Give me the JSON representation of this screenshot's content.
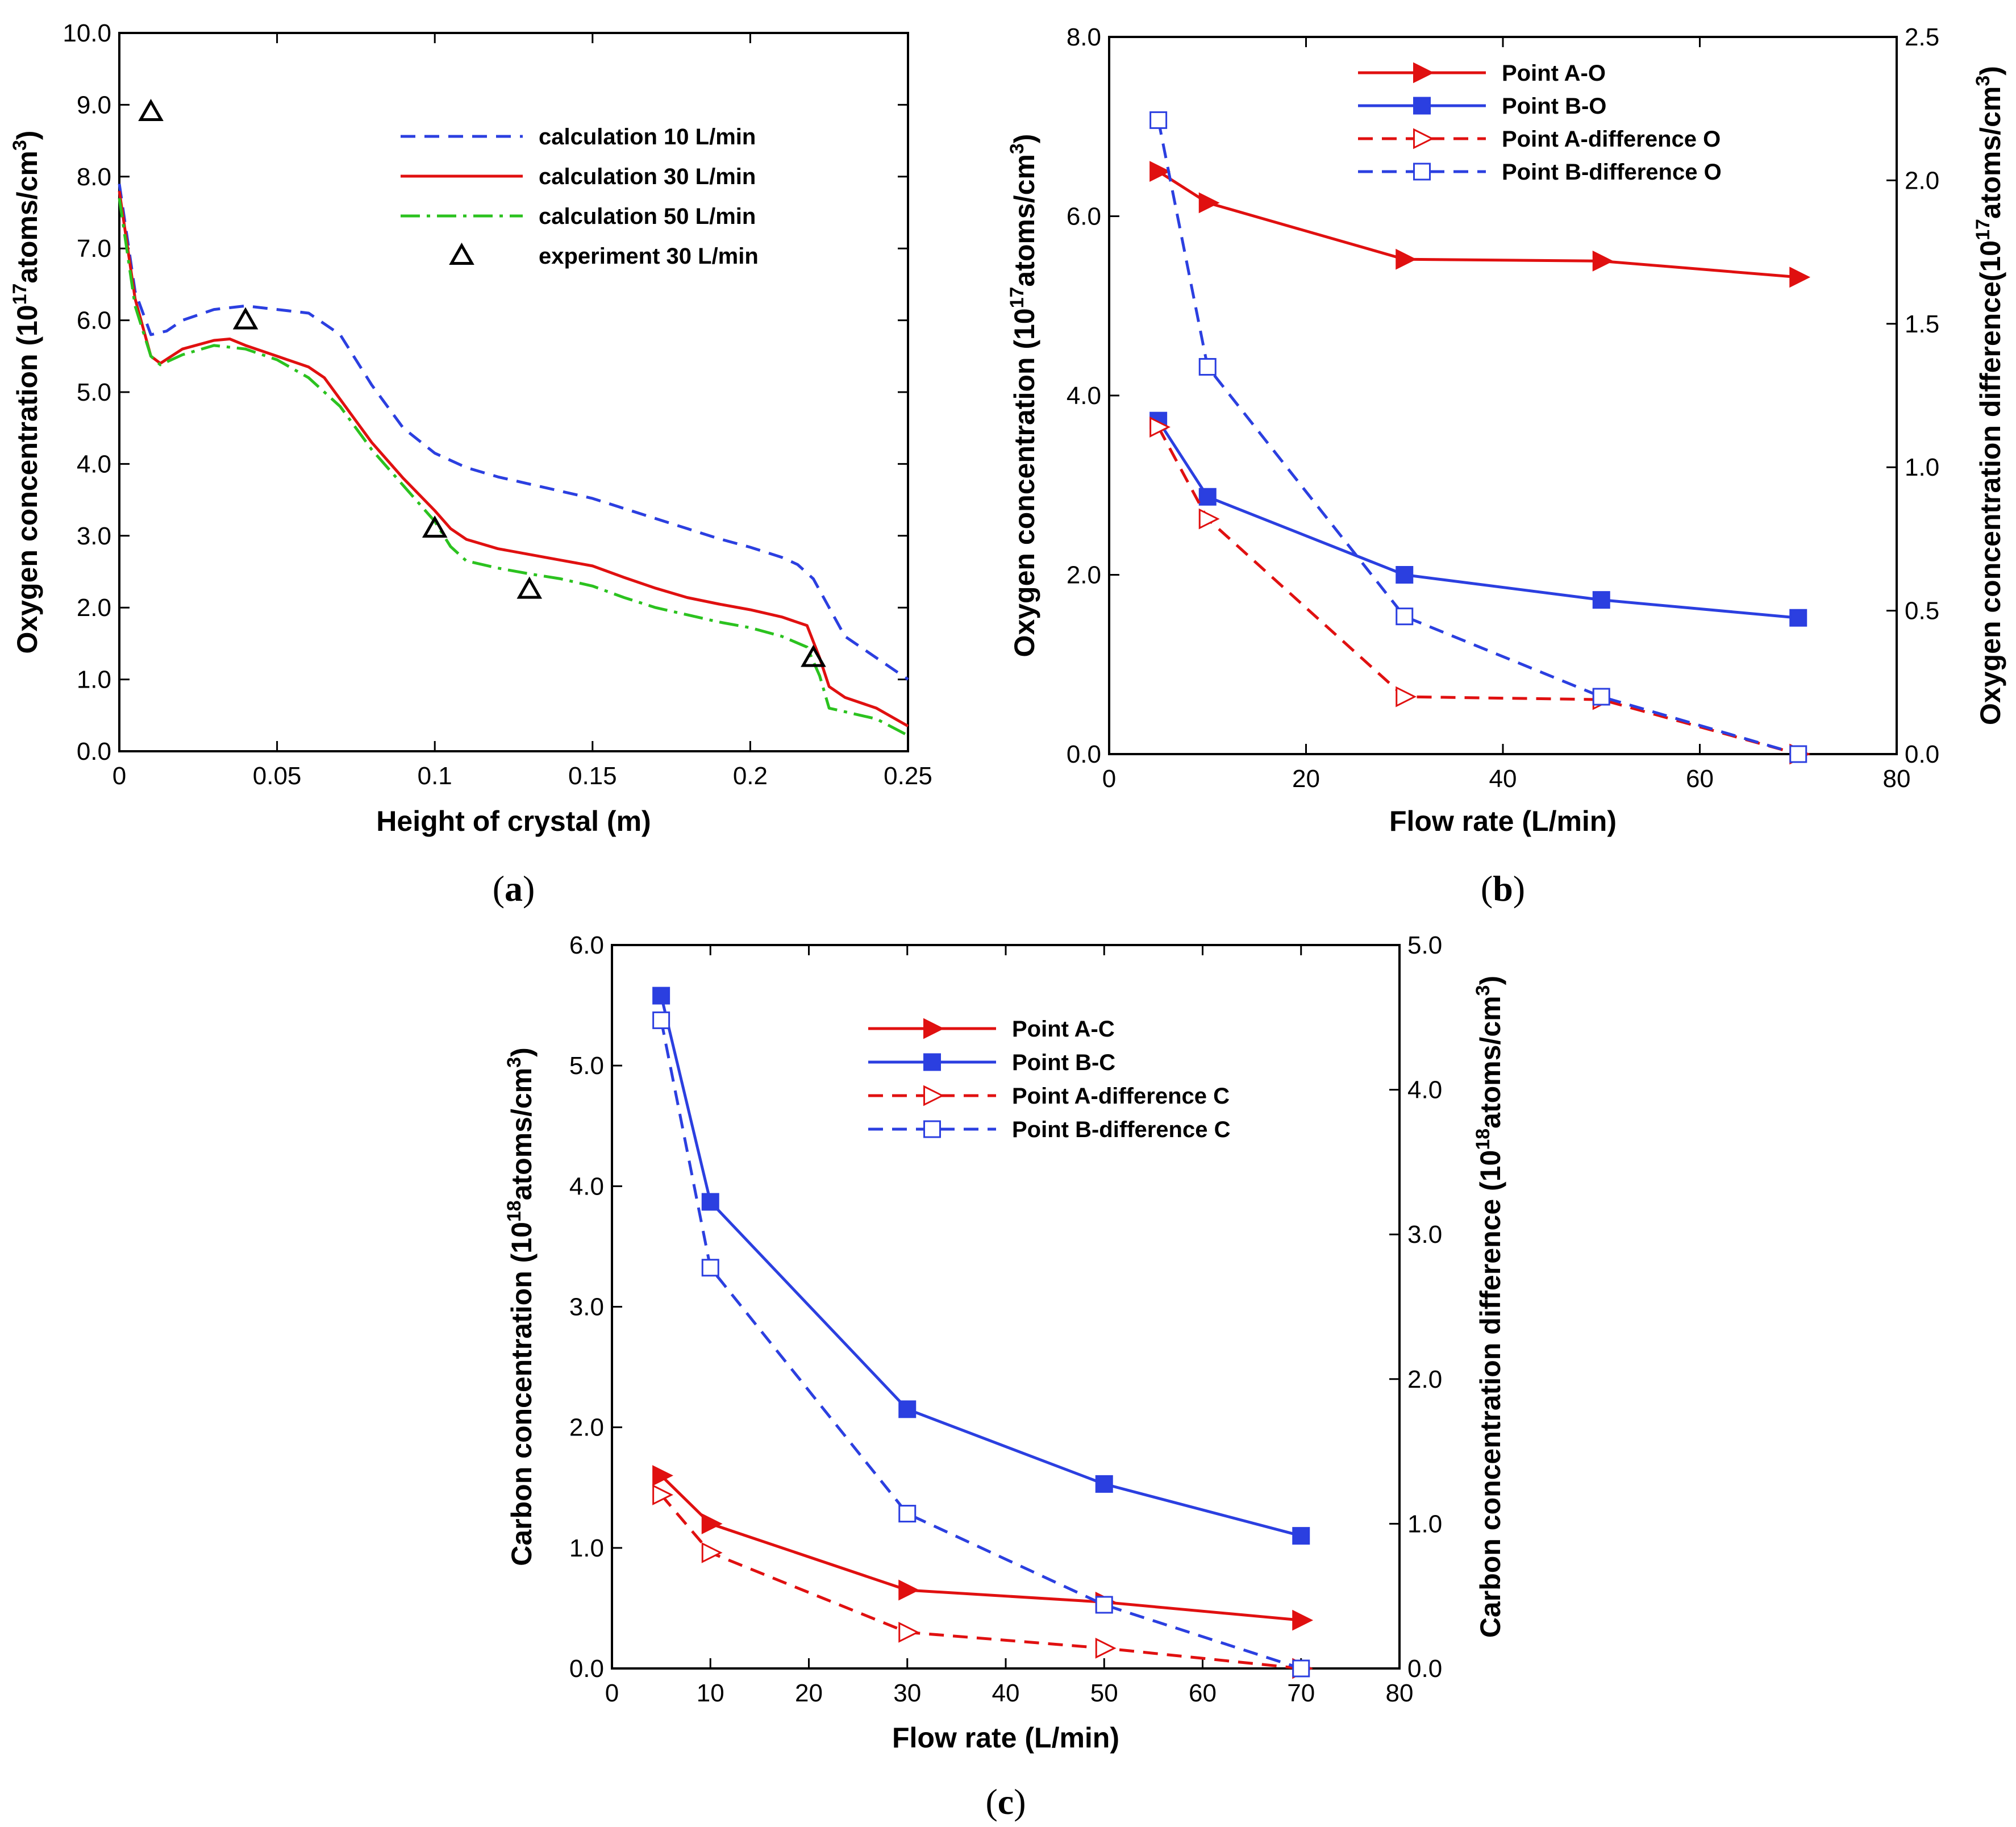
{
  "chart_data": [
    {
      "id": "a",
      "type": "line",
      "panel_label": {
        "open": "(",
        "letter": "a",
        "close": ")"
      },
      "xlabel": "Height of crystal (m)",
      "ylabel": {
        "main": "Oxygen concentration (10",
        "sup": "17",
        "mid": "atoms/cm",
        "sup2": "3",
        "end": ")"
      },
      "xlim": [
        0,
        0.25
      ],
      "ylim": [
        0,
        10
      ],
      "xticks": [
        {
          "v": 0,
          "t": "0"
        },
        {
          "v": 0.05,
          "t": "0.05"
        },
        {
          "v": 0.1,
          "t": "0.1"
        },
        {
          "v": 0.15,
          "t": "0.15"
        },
        {
          "v": 0.2,
          "t": "0.2"
        },
        {
          "v": 0.25,
          "t": "0.25"
        }
      ],
      "yticks": [
        {
          "v": 0,
          "t": "0.0"
        },
        {
          "v": 1,
          "t": "1.0"
        },
        {
          "v": 2,
          "t": "2.0"
        },
        {
          "v": 3,
          "t": "3.0"
        },
        {
          "v": 4,
          "t": "4.0"
        },
        {
          "v": 5,
          "t": "5.0"
        },
        {
          "v": 6,
          "t": "6.0"
        },
        {
          "v": 7,
          "t": "7.0"
        },
        {
          "v": 8,
          "t": "8.0"
        },
        {
          "v": 9,
          "t": "9.0"
        },
        {
          "v": 10,
          "t": "10.0"
        }
      ],
      "legend_position": "top-right",
      "series": [
        {
          "name": "calculation 10 L/min",
          "color": "#2b3fe0",
          "dash": "dash",
          "marker": "none",
          "x": [
            0,
            0.005,
            0.01,
            0.015,
            0.02,
            0.03,
            0.04,
            0.05,
            0.06,
            0.07,
            0.08,
            0.09,
            0.1,
            0.11,
            0.12,
            0.13,
            0.14,
            0.15,
            0.16,
            0.17,
            0.18,
            0.19,
            0.2,
            0.21,
            0.215,
            0.22,
            0.225,
            0.23,
            0.24,
            0.25
          ],
          "y": [
            7.9,
            6.4,
            5.8,
            5.85,
            6.0,
            6.15,
            6.2,
            6.15,
            6.1,
            5.8,
            5.1,
            4.5,
            4.15,
            3.95,
            3.82,
            3.72,
            3.62,
            3.52,
            3.38,
            3.24,
            3.1,
            2.96,
            2.84,
            2.7,
            2.6,
            2.4,
            2.0,
            1.6,
            1.3,
            1.0
          ]
        },
        {
          "name": "calculation 30 L/min",
          "color": "#e01010",
          "dash": "solid",
          "marker": "none",
          "x": [
            0,
            0.005,
            0.01,
            0.013,
            0.02,
            0.03,
            0.035,
            0.04,
            0.05,
            0.06,
            0.065,
            0.07,
            0.08,
            0.09,
            0.1,
            0.105,
            0.11,
            0.12,
            0.13,
            0.14,
            0.15,
            0.16,
            0.17,
            0.18,
            0.19,
            0.2,
            0.21,
            0.218,
            0.222,
            0.225,
            0.23,
            0.24,
            0.25
          ],
          "y": [
            7.8,
            6.3,
            5.5,
            5.4,
            5.6,
            5.72,
            5.74,
            5.65,
            5.5,
            5.35,
            5.2,
            4.9,
            4.3,
            3.8,
            3.35,
            3.1,
            2.95,
            2.82,
            2.74,
            2.66,
            2.58,
            2.42,
            2.27,
            2.14,
            2.05,
            1.97,
            1.87,
            1.75,
            1.3,
            0.9,
            0.75,
            0.6,
            0.35
          ]
        },
        {
          "name": "calculation 50 L/min",
          "color": "#2bc21f",
          "dash": "dashdot",
          "marker": "none",
          "x": [
            0,
            0.005,
            0.01,
            0.013,
            0.02,
            0.03,
            0.04,
            0.05,
            0.06,
            0.07,
            0.08,
            0.09,
            0.1,
            0.105,
            0.11,
            0.12,
            0.13,
            0.14,
            0.15,
            0.16,
            0.17,
            0.18,
            0.19,
            0.2,
            0.21,
            0.218,
            0.222,
            0.225,
            0.23,
            0.24,
            0.25
          ],
          "y": [
            7.7,
            6.2,
            5.5,
            5.38,
            5.52,
            5.65,
            5.6,
            5.45,
            5.2,
            4.8,
            4.2,
            3.7,
            3.2,
            2.85,
            2.65,
            2.55,
            2.47,
            2.4,
            2.3,
            2.14,
            2.0,
            1.9,
            1.8,
            1.72,
            1.6,
            1.45,
            1.05,
            0.6,
            0.55,
            0.45,
            0.22
          ]
        },
        {
          "name": "experiment 30 L/min",
          "color": "#000000",
          "dash": "none",
          "marker": "triangle-open",
          "x": [
            0.01,
            0.04,
            0.1,
            0.13,
            0.22
          ],
          "y": [
            8.9,
            6.0,
            3.1,
            2.25,
            1.3
          ]
        }
      ]
    },
    {
      "id": "b",
      "type": "line",
      "panel_label": {
        "open": "(",
        "letter": "b",
        "close": ")"
      },
      "xlabel": "Flow rate (L/min)",
      "ylabel": {
        "main": "Oxygen concentration (10",
        "sup": "17",
        "mid": "atoms/cm",
        "sup2": "3",
        "end": ")"
      },
      "y2label": {
        "main": "Oxygen concentration difference(10",
        "sup": "17",
        "mid": "atoms/cm",
        "sup2": "3",
        "end": ")"
      },
      "xlim": [
        0,
        80
      ],
      "ylim": [
        0,
        8
      ],
      "y2lim": [
        0,
        2.5
      ],
      "xticks": [
        {
          "v": 0,
          "t": "0"
        },
        {
          "v": 20,
          "t": "20"
        },
        {
          "v": 40,
          "t": "40"
        },
        {
          "v": 60,
          "t": "60"
        },
        {
          "v": 80,
          "t": "80"
        }
      ],
      "yticks": [
        {
          "v": 0,
          "t": "0.0"
        },
        {
          "v": 2,
          "t": "2.0"
        },
        {
          "v": 4,
          "t": "4.0"
        },
        {
          "v": 6,
          "t": "6.0"
        },
        {
          "v": 8,
          "t": "8.0"
        }
      ],
      "y2ticks": [
        {
          "v": 0,
          "t": "0.0"
        },
        {
          "v": 0.5,
          "t": "0.5"
        },
        {
          "v": 1,
          "t": "1.0"
        },
        {
          "v": 1.5,
          "t": "1.5"
        },
        {
          "v": 2,
          "t": "2.0"
        },
        {
          "v": 2.5,
          "t": "2.5"
        }
      ],
      "legend_position": "top-right",
      "series": [
        {
          "name": "Point A-O",
          "color": "#e01010",
          "dash": "solid",
          "marker": "triangle-right-filled",
          "axis": "y1",
          "x": [
            5,
            10,
            30,
            50,
            70
          ],
          "y": [
            6.5,
            6.15,
            5.52,
            5.5,
            5.32
          ]
        },
        {
          "name": "Point B-O",
          "color": "#2b3fe0",
          "dash": "solid",
          "marker": "square-filled",
          "axis": "y1",
          "x": [
            5,
            10,
            30,
            50,
            70
          ],
          "y": [
            3.72,
            2.87,
            2.0,
            1.72,
            1.52
          ]
        },
        {
          "name": "Point A-difference O",
          "color": "#e01010",
          "dash": "dash",
          "marker": "triangle-right-open",
          "axis": "y2",
          "x": [
            5,
            10,
            30,
            50,
            70
          ],
          "y": [
            1.14,
            0.82,
            0.2,
            0.19,
            0.0
          ]
        },
        {
          "name": "Point B-difference O",
          "color": "#2b3fe0",
          "dash": "dash",
          "marker": "square-open",
          "axis": "y2",
          "x": [
            5,
            10,
            30,
            50,
            70
          ],
          "y": [
            2.21,
            1.35,
            0.48,
            0.2,
            0.0
          ]
        }
      ]
    },
    {
      "id": "c",
      "type": "line",
      "panel_label": {
        "open": "(",
        "letter": "c",
        "close": ")"
      },
      "xlabel": "Flow rate (L/min)",
      "ylabel": {
        "main": "Carbon concentration (10",
        "sup": "18",
        "mid": "atoms/cm",
        "sup2": "3",
        "end": ")"
      },
      "y2label": {
        "main": "Carbon concentration difference (10",
        "sup": "18",
        "mid": "atoms/cm",
        "sup2": "3",
        "end": ")"
      },
      "xlim": [
        0,
        80
      ],
      "ylim": [
        0,
        6
      ],
      "y2lim": [
        0,
        5
      ],
      "xticks": [
        {
          "v": 0,
          "t": "0"
        },
        {
          "v": 10,
          "t": "10"
        },
        {
          "v": 20,
          "t": "20"
        },
        {
          "v": 30,
          "t": "30"
        },
        {
          "v": 40,
          "t": "40"
        },
        {
          "v": 50,
          "t": "50"
        },
        {
          "v": 60,
          "t": "60"
        },
        {
          "v": 70,
          "t": "70"
        },
        {
          "v": 80,
          "t": "80"
        }
      ],
      "yticks": [
        {
          "v": 0,
          "t": "0.0"
        },
        {
          "v": 1,
          "t": "1.0"
        },
        {
          "v": 2,
          "t": "2.0"
        },
        {
          "v": 3,
          "t": "3.0"
        },
        {
          "v": 4,
          "t": "4.0"
        },
        {
          "v": 5,
          "t": "5.0"
        },
        {
          "v": 6,
          "t": "6.0"
        }
      ],
      "y2ticks": [
        {
          "v": 0,
          "t": "0.0"
        },
        {
          "v": 1,
          "t": "1.0"
        },
        {
          "v": 2,
          "t": "2.0"
        },
        {
          "v": 3,
          "t": "3.0"
        },
        {
          "v": 4,
          "t": "4.0"
        },
        {
          "v": 5,
          "t": "5.0"
        }
      ],
      "legend_position": "top-center",
      "series": [
        {
          "name": "Point A-C",
          "color": "#e01010",
          "dash": "solid",
          "marker": "triangle-right-filled",
          "axis": "y1",
          "x": [
            5,
            10,
            30,
            50,
            70
          ],
          "y": [
            1.6,
            1.2,
            0.65,
            0.55,
            0.4
          ]
        },
        {
          "name": "Point B-C",
          "color": "#2b3fe0",
          "dash": "solid",
          "marker": "square-filled",
          "axis": "y1",
          "x": [
            5,
            10,
            30,
            50,
            70
          ],
          "y": [
            5.58,
            3.87,
            2.15,
            1.53,
            1.1
          ]
        },
        {
          "name": "Point A-difference C",
          "color": "#e01010",
          "dash": "dash",
          "marker": "triangle-right-open",
          "axis": "y2",
          "x": [
            5,
            10,
            30,
            50,
            70
          ],
          "y": [
            1.2,
            0.8,
            0.25,
            0.14,
            0.0
          ]
        },
        {
          "name": "Point B-difference C",
          "color": "#2b3fe0",
          "dash": "dash",
          "marker": "square-open",
          "axis": "y2",
          "x": [
            5,
            10,
            30,
            50,
            70
          ],
          "y": [
            4.48,
            2.77,
            1.07,
            0.44,
            0.0
          ]
        }
      ]
    }
  ]
}
